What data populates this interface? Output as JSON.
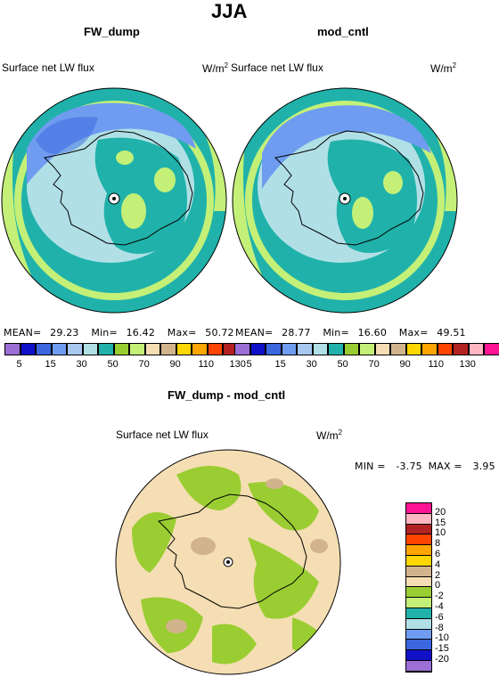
{
  "figure_title": "JJA",
  "panels": [
    {
      "title": "FW_dump",
      "variable": "Surface net LW flux",
      "units": "W/m",
      "units_sup": "2",
      "mean_label": "MEAN=",
      "mean": "29.23",
      "min_label": "Min=",
      "min": "16.42",
      "max_label": "Max=",
      "max": "50.72"
    },
    {
      "title": "mod_cntl",
      "variable": "Surface net LW flux",
      "units": "W/m",
      "units_sup": "2",
      "mean_label": "MEAN=",
      "mean": "28.77",
      "min_label": "Min=",
      "min": "16.60",
      "max_label": "Max=",
      "max": "49.51"
    },
    {
      "title": "FW_dump - mod_cntl",
      "variable": "Surface net LW flux",
      "units": "W/m",
      "units_sup": "2",
      "min_label": "MIN =",
      "min": "-3.75",
      "max_label": "MAX =",
      "max": "3.95"
    }
  ],
  "field_colorbar": {
    "colors": [
      "#9b6fd6",
      "#1010c8",
      "#3a66e0",
      "#6f9cf0",
      "#a8c8f0",
      "#b0e0e6",
      "#20b2aa",
      "#9acd32",
      "#c4f078",
      "#f5deb3",
      "#d2b48c",
      "#ffd700",
      "#ffa500",
      "#ff4500",
      "#b22222",
      "#ffb6c1",
      "#ff1493"
    ],
    "tick_labels": [
      "5",
      "15",
      "30",
      "50",
      "70",
      "90",
      "110",
      "130"
    ]
  },
  "diff_colorbar": {
    "colors": [
      "#ff1493",
      "#ffb6c1",
      "#b22222",
      "#ff4500",
      "#ffa500",
      "#ffd700",
      "#d2b48c",
      "#f5deb3",
      "#9acd32",
      "#c4f078",
      "#20b2aa",
      "#b0e0e6",
      "#6f9cf0",
      "#3a66e0",
      "#1010c8",
      "#9b6fd6"
    ],
    "tick_labels": [
      "20",
      "15",
      "10",
      "8",
      "6",
      "4",
      "2",
      "0",
      "-2",
      "-4",
      "-6",
      "-8",
      "-10",
      "-15",
      "-20"
    ]
  }
}
